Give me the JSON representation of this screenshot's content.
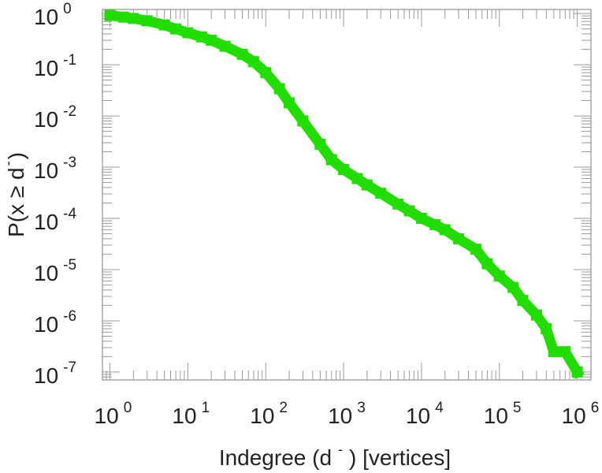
{
  "chart_data": {
    "type": "line",
    "xscale": "log",
    "yscale": "log",
    "xlim": [
      0.8,
      1500000
    ],
    "ylim": [
      7e-08,
      1.2
    ],
    "grid": false,
    "xlabel": {
      "main": "Indegree (d",
      "sup": "-",
      "tail": ") [vertices]"
    },
    "ylabel": {
      "main": "P(x ≥ d",
      "sup": "-",
      "tail": ")"
    },
    "x_ticks": [
      {
        "base": "10",
        "exp": "0"
      },
      {
        "base": "10",
        "exp": "1"
      },
      {
        "base": "10",
        "exp": "2"
      },
      {
        "base": "10",
        "exp": "3"
      },
      {
        "base": "10",
        "exp": "4"
      },
      {
        "base": "10",
        "exp": "5"
      },
      {
        "base": "10",
        "exp": "6"
      }
    ],
    "y_ticks": [
      {
        "base": "10",
        "exp": "0"
      },
      {
        "base": "10",
        "exp": "-1"
      },
      {
        "base": "10",
        "exp": "-2"
      },
      {
        "base": "10",
        "exp": "-3"
      },
      {
        "base": "10",
        "exp": "-4"
      },
      {
        "base": "10",
        "exp": "-5"
      },
      {
        "base": "10",
        "exp": "-6"
      },
      {
        "base": "10",
        "exp": "-7"
      }
    ],
    "series": [
      {
        "color": "#22dd00",
        "marker": "square",
        "x": [
          1,
          1.5,
          2,
          3,
          5,
          7,
          10,
          15,
          20,
          30,
          50,
          70,
          100,
          150,
          200,
          300,
          500,
          700,
          1000,
          1500,
          2000,
          3000,
          5000,
          7000,
          10000,
          15000,
          20000,
          30000,
          50000,
          70000,
          100000,
          150000,
          200000,
          300000,
          400000,
          500000,
          700000,
          1000000
        ],
        "y": [
          0.92,
          0.85,
          0.8,
          0.72,
          0.6,
          0.5,
          0.42,
          0.35,
          0.3,
          0.23,
          0.16,
          0.115,
          0.07,
          0.034,
          0.018,
          0.008,
          0.0028,
          0.0014,
          0.0009,
          0.0006,
          0.00045,
          0.00031,
          0.00019,
          0.00014,
          0.0001,
          7.5e-05,
          6e-05,
          4e-05,
          2.5e-05,
          1.3e-05,
          7.5e-06,
          4.5e-06,
          2.5e-06,
          1.3e-06,
          7e-07,
          2.5e-07,
          2.5e-07,
          1e-07
        ]
      }
    ]
  }
}
